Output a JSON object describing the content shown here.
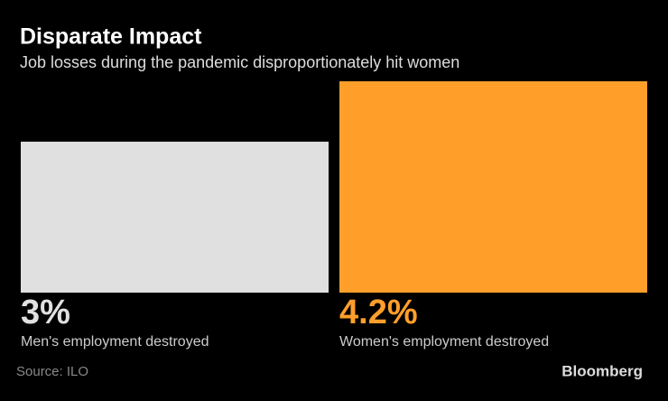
{
  "chart_data": {
    "type": "bar",
    "title": "Disparate Impact",
    "subtitle": "Job losses during the pandemic disproportionately hit women",
    "categories": [
      "Men's employment destroyed",
      "Women's employment destroyed"
    ],
    "values": [
      3,
      4.2
    ],
    "value_labels": [
      "3%",
      "4.2%"
    ],
    "colors": [
      "#e0e0e0",
      "#ff9f2a"
    ],
    "ylim": [
      0,
      4.2
    ],
    "source": "Source: ILO",
    "brand": "Bloomberg"
  }
}
